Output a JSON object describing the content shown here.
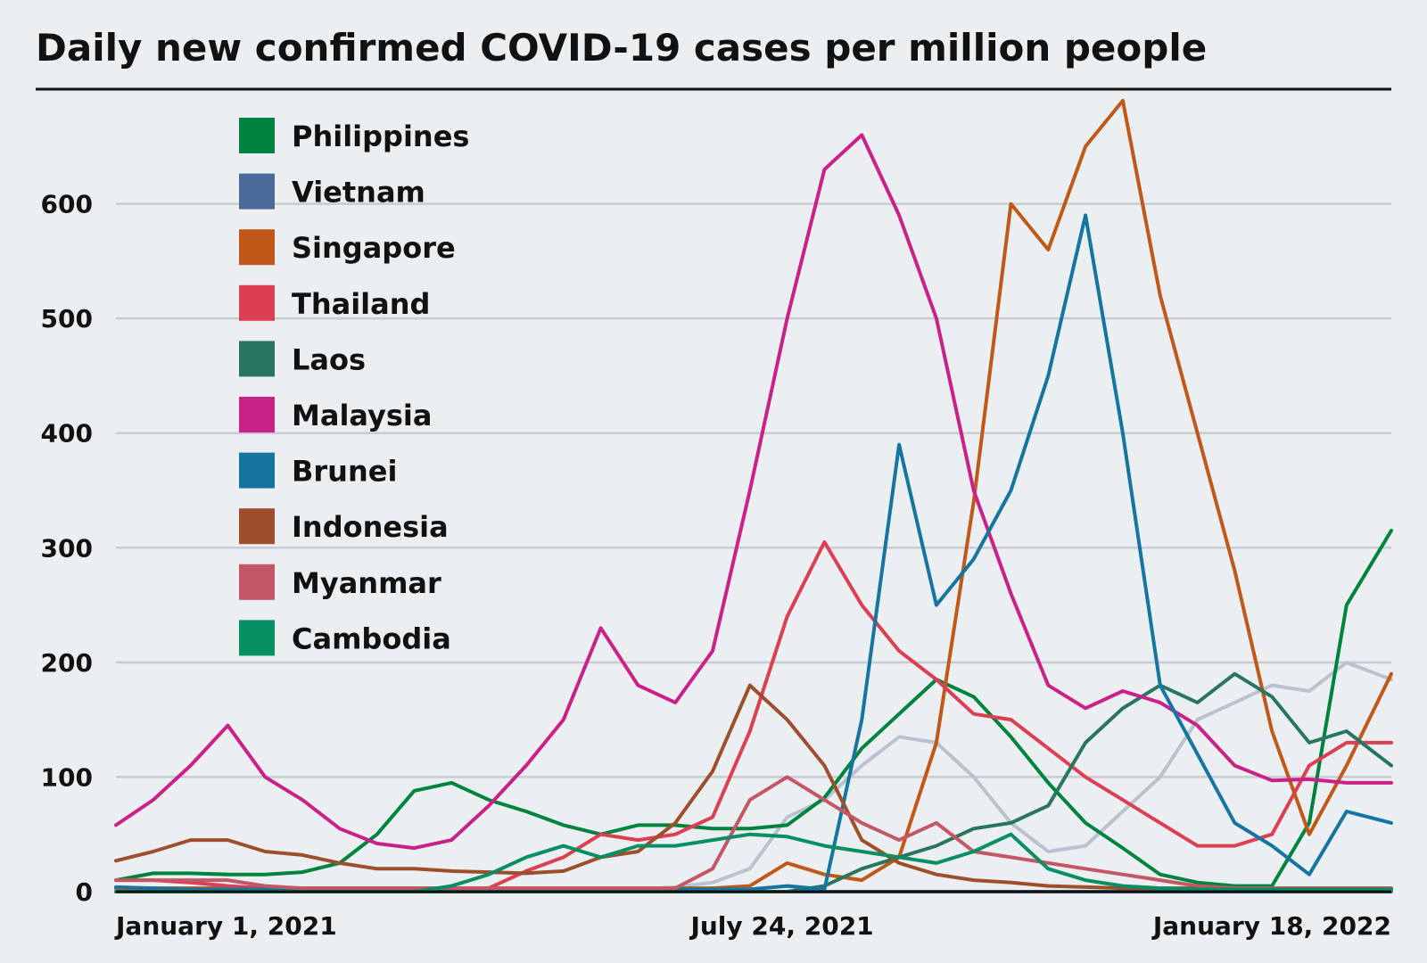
{
  "chart_data": {
    "type": "line",
    "title": "Daily new confirmed COVID-19 cases per million people",
    "xlabel": "",
    "ylabel": "",
    "ylim": [
      0,
      700
    ],
    "yticks": [
      0,
      100,
      200,
      300,
      400,
      500,
      600
    ],
    "xlim": [
      "2020-10-29",
      "2022-03-26"
    ],
    "xticks": [
      {
        "date": "2021-01-01",
        "label": "January 1, 2021"
      },
      {
        "date": "2021-07-24",
        "label": "July 24, 2021"
      },
      {
        "date": "2022-01-18",
        "label": "January 18, 2022"
      }
    ],
    "grid": true,
    "legend_position": "top-left",
    "x": [
      "2020-10-29",
      "2020-11-13",
      "2020-11-28",
      "2020-12-13",
      "2020-12-28",
      "2021-01-12",
      "2021-01-27",
      "2021-02-11",
      "2021-02-26",
      "2021-03-13",
      "2021-03-28",
      "2021-04-12",
      "2021-04-27",
      "2021-05-12",
      "2021-05-27",
      "2021-06-11",
      "2021-06-26",
      "2021-07-11",
      "2021-07-26",
      "2021-08-10",
      "2021-08-25",
      "2021-09-09",
      "2021-09-24",
      "2021-10-09",
      "2021-10-24",
      "2021-11-08",
      "2021-11-23",
      "2021-12-08",
      "2021-12-23",
      "2022-01-07",
      "2022-01-22",
      "2022-02-06",
      "2022-02-21",
      "2022-03-08",
      "2022-03-26"
    ],
    "series": [
      {
        "name": "Philippines",
        "color": "#00843d",
        "values": [
          10,
          16,
          16,
          15,
          15,
          17,
          25,
          50,
          88,
          95,
          80,
          70,
          58,
          50,
          58,
          58,
          55,
          55,
          58,
          82,
          125,
          155,
          185,
          170,
          135,
          95,
          60,
          38,
          15,
          8,
          5,
          5,
          60,
          250,
          315
        ]
      },
      {
        "name": "Vietnam",
        "color": "#4c6a9c",
        "values": [
          0,
          0,
          0,
          0,
          0,
          0,
          0,
          0,
          0,
          0,
          0,
          0,
          0,
          0,
          0,
          0,
          0,
          0,
          0,
          0,
          0,
          0,
          0,
          0,
          0,
          0,
          0,
          0,
          0,
          0,
          0,
          0,
          0,
          0,
          0
        ]
      },
      {
        "name": "Singapore",
        "color": "#c05917",
        "values": [
          3,
          3,
          3,
          3,
          3,
          3,
          3,
          3,
          3,
          3,
          3,
          3,
          3,
          3,
          3,
          3,
          3,
          5,
          25,
          15,
          10,
          30,
          130,
          340,
          600,
          560,
          650,
          690,
          520,
          400,
          280,
          140,
          50,
          110,
          190
        ]
      },
      {
        "name": "Thailand",
        "color": "#dc3e52",
        "values": [
          10,
          10,
          8,
          5,
          3,
          3,
          3,
          3,
          3,
          3,
          3,
          18,
          30,
          50,
          45,
          50,
          65,
          140,
          240,
          305,
          250,
          210,
          185,
          155,
          150,
          125,
          100,
          80,
          60,
          40,
          40,
          50,
          110,
          130,
          130
        ]
      },
      {
        "name": "Laos",
        "color": "#28765f",
        "values": [
          0,
          0,
          0,
          0,
          0,
          0,
          0,
          0,
          0,
          0,
          0,
          0,
          0,
          0,
          0,
          0,
          0,
          0,
          0,
          5,
          20,
          30,
          40,
          55,
          60,
          75,
          130,
          160,
          180,
          165,
          190,
          170,
          130,
          140,
          110
        ]
      },
      {
        "name": "Malaysia",
        "color": "#ca2189",
        "values": [
          58,
          80,
          110,
          145,
          100,
          80,
          55,
          42,
          38,
          45,
          75,
          110,
          150,
          230,
          180,
          165,
          210,
          350,
          500,
          630,
          660,
          590,
          500,
          350,
          260,
          180,
          160,
          175,
          165,
          145,
          110,
          97,
          98,
          95,
          95
        ]
      },
      {
        "name": "Brunei",
        "color": "#1575a0",
        "values": [
          4,
          3,
          2,
          2,
          2,
          2,
          2,
          2,
          2,
          2,
          2,
          2,
          2,
          2,
          2,
          2,
          2,
          2,
          5,
          2,
          150,
          390,
          250,
          290,
          350,
          450,
          590,
          400,
          180,
          120,
          60,
          40,
          15,
          70,
          60
        ]
      },
      {
        "name": "Indonesia",
        "color": "#9c4f2a",
        "values": [
          27,
          35,
          45,
          45,
          35,
          32,
          25,
          20,
          20,
          18,
          17,
          16,
          18,
          30,
          35,
          60,
          105,
          180,
          150,
          110,
          45,
          25,
          15,
          10,
          8,
          5,
          4,
          3,
          3,
          3,
          3,
          3,
          3,
          3,
          3
        ]
      },
      {
        "name": "Myanmar",
        "color": "#c45766",
        "values": [
          10,
          10,
          10,
          10,
          5,
          3,
          3,
          3,
          3,
          3,
          3,
          3,
          3,
          3,
          3,
          3,
          20,
          80,
          100,
          80,
          60,
          45,
          60,
          35,
          30,
          25,
          20,
          15,
          10,
          5,
          3,
          3,
          3,
          3,
          3
        ]
      },
      {
        "name": "Cambodia",
        "color": "#078f63",
        "values": [
          0,
          0,
          0,
          0,
          0,
          0,
          0,
          0,
          0,
          5,
          15,
          30,
          40,
          30,
          40,
          40,
          45,
          50,
          48,
          40,
          35,
          30,
          25,
          35,
          50,
          20,
          10,
          5,
          3,
          2,
          2,
          2,
          2,
          2,
          2
        ]
      },
      {
        "name": "",
        "color": "#b9c2cf",
        "values": [
          0,
          0,
          0,
          0,
          0,
          0,
          0,
          0,
          0,
          0,
          0,
          0,
          0,
          0,
          2,
          4,
          8,
          20,
          65,
          80,
          110,
          135,
          130,
          100,
          60,
          35,
          40,
          70,
          100,
          150,
          165,
          180,
          175,
          200,
          185
        ]
      }
    ]
  }
}
